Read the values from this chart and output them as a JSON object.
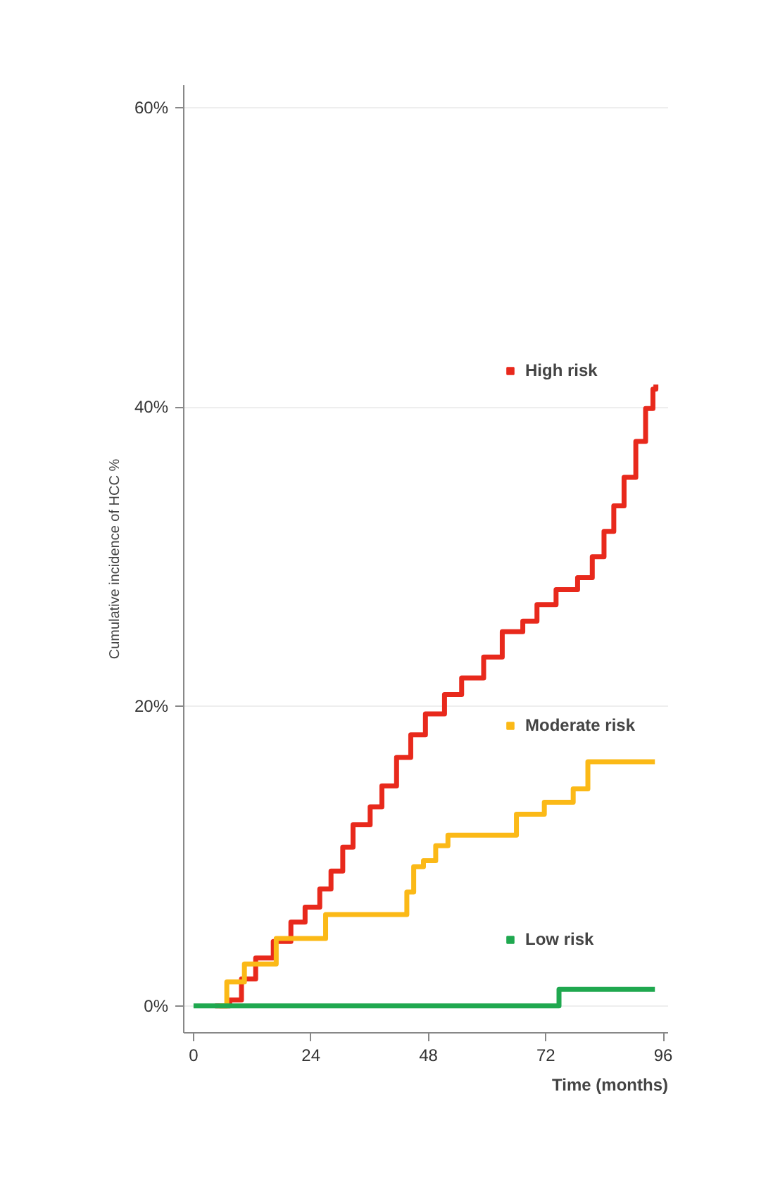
{
  "chart_data": {
    "type": "step",
    "xlabel": "Time (months)",
    "ylabel": "Cumulative incidence of HCC %",
    "xlim": [
      -2,
      97
    ],
    "ylim": [
      -1.8,
      61.5
    ],
    "xticks": [
      0,
      24,
      48,
      72,
      96
    ],
    "yticks": [
      {
        "value": 0,
        "label": "0%"
      },
      {
        "value": 20,
        "label": "20%"
      },
      {
        "value": 40,
        "label": "40%"
      },
      {
        "value": 60,
        "label": "60%"
      }
    ],
    "grid": "y",
    "legend": "right",
    "marker": "none",
    "line_style": "solid",
    "series": [
      {
        "name": "High risk",
        "color": "#e8291c",
        "x": [
          4.4,
          7.4,
          9.8,
          12.7,
          16.3,
          19.9,
          22.8,
          25.8,
          28.1,
          30.5,
          32.6,
          36.1,
          38.5,
          41.5,
          44.4,
          47.4,
          51.3,
          54.8,
          59.3,
          63.1,
          67.3,
          70.2,
          74.1,
          78.5,
          81.5,
          83.9,
          85.9,
          88.0,
          90.4,
          92.4,
          93.9,
          94.5
        ],
        "values": [
          0,
          0.4,
          1.8,
          3.2,
          4.3,
          5.6,
          6.6,
          7.8,
          9.0,
          10.6,
          12.1,
          13.3,
          14.7,
          16.6,
          18.1,
          19.5,
          20.8,
          21.9,
          23.3,
          25.0,
          25.7,
          26.8,
          27.8,
          28.6,
          30.0,
          31.7,
          33.4,
          35.3,
          37.7,
          39.9,
          41.2,
          41.5
        ]
      },
      {
        "name": "Moderate risk",
        "color": "#fbb917",
        "x": [
          5.3,
          6.8,
          10.4,
          16.9,
          27.0,
          43.6,
          45.0,
          47.0,
          49.5,
          52.0,
          54.5,
          66.0,
          71.7,
          77.6,
          80.6,
          94.3
        ],
        "values": [
          0,
          1.6,
          2.8,
          4.5,
          6.1,
          7.6,
          9.3,
          9.7,
          10.7,
          11.4,
          11.4,
          12.8,
          13.6,
          14.5,
          16.3,
          16.3
        ]
      },
      {
        "name": "Low risk",
        "color": "#1fa84f",
        "x": [
          0,
          74.7,
          94.3
        ],
        "values": [
          0,
          1.1,
          1.1
        ]
      }
    ]
  }
}
